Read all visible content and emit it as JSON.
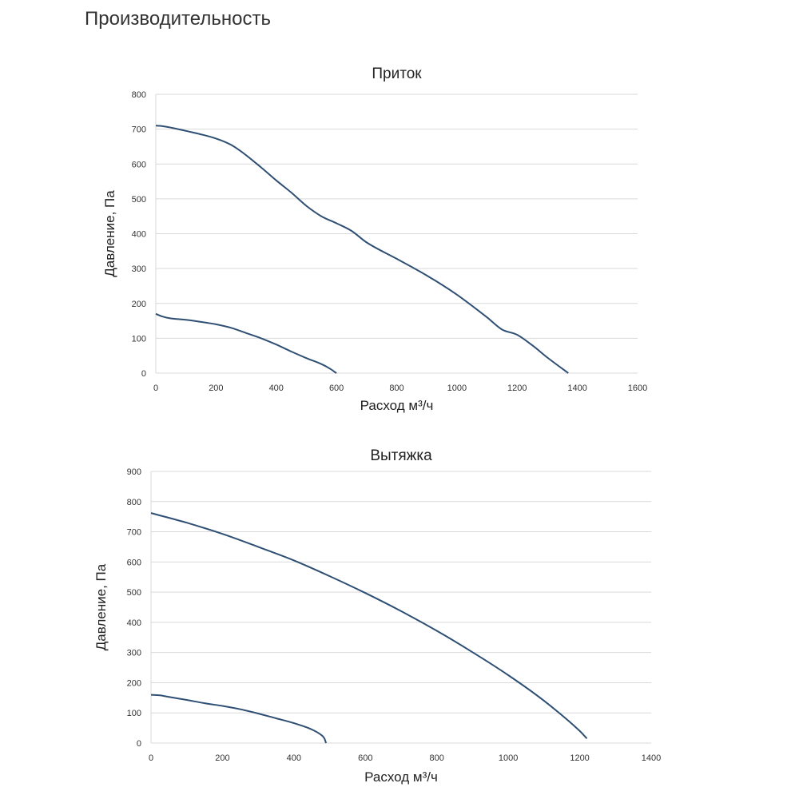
{
  "page": {
    "title": "Производительность"
  },
  "chart_data": [
    {
      "type": "line",
      "title": "Приток",
      "xlabel": "Расход м³/ч",
      "ylabel": "Давление, Па",
      "xlim": [
        0,
        1600
      ],
      "ylim": [
        0,
        800
      ],
      "xticks": [
        0,
        200,
        400,
        600,
        800,
        1000,
        1200,
        1400,
        1600
      ],
      "yticks": [
        0,
        100,
        200,
        300,
        400,
        500,
        600,
        700,
        800
      ],
      "grid": true,
      "color": "#2e4f73",
      "series": [
        {
          "x": [
            0,
            20,
            100,
            200,
            250,
            300,
            350,
            400,
            450,
            500,
            550,
            600,
            650,
            700,
            800,
            900,
            1000,
            1100,
            1150,
            1200,
            1250,
            1300,
            1370
          ],
          "y": [
            710,
            709,
            695,
            673,
            655,
            625,
            590,
            553,
            518,
            480,
            450,
            430,
            408,
            375,
            328,
            280,
            225,
            160,
            125,
            110,
            80,
            45,
            0
          ]
        },
        {
          "x": [
            0,
            20,
            50,
            100,
            150,
            200,
            250,
            300,
            350,
            400,
            450,
            500,
            550,
            580,
            600
          ],
          "y": [
            170,
            163,
            157,
            153,
            147,
            140,
            130,
            115,
            100,
            82,
            62,
            43,
            26,
            12,
            0
          ]
        }
      ]
    },
    {
      "type": "line",
      "title": "Вытяжка",
      "xlabel": "Расход м³/ч",
      "ylabel": "Давление, Па",
      "xlim": [
        0,
        1400
      ],
      "ylim": [
        0,
        900
      ],
      "xticks": [
        0,
        200,
        400,
        600,
        800,
        1000,
        1200,
        1400
      ],
      "yticks": [
        0,
        100,
        200,
        300,
        400,
        500,
        600,
        700,
        800,
        900
      ],
      "grid": true,
      "color": "#2e4f73",
      "series": [
        {
          "x": [
            0,
            100,
            200,
            300,
            400,
            500,
            600,
            700,
            800,
            900,
            1000,
            1100,
            1200,
            1220
          ],
          "y": [
            762,
            730,
            693,
            650,
            605,
            553,
            497,
            437,
            372,
            301,
            225,
            140,
            40,
            15
          ]
        },
        {
          "x": [
            0,
            25,
            50,
            100,
            150,
            200,
            250,
            300,
            350,
            400,
            450,
            475,
            485,
            490
          ],
          "y": [
            160,
            158,
            153,
            143,
            132,
            123,
            112,
            98,
            82,
            66,
            45,
            28,
            16,
            0
          ]
        }
      ]
    }
  ]
}
